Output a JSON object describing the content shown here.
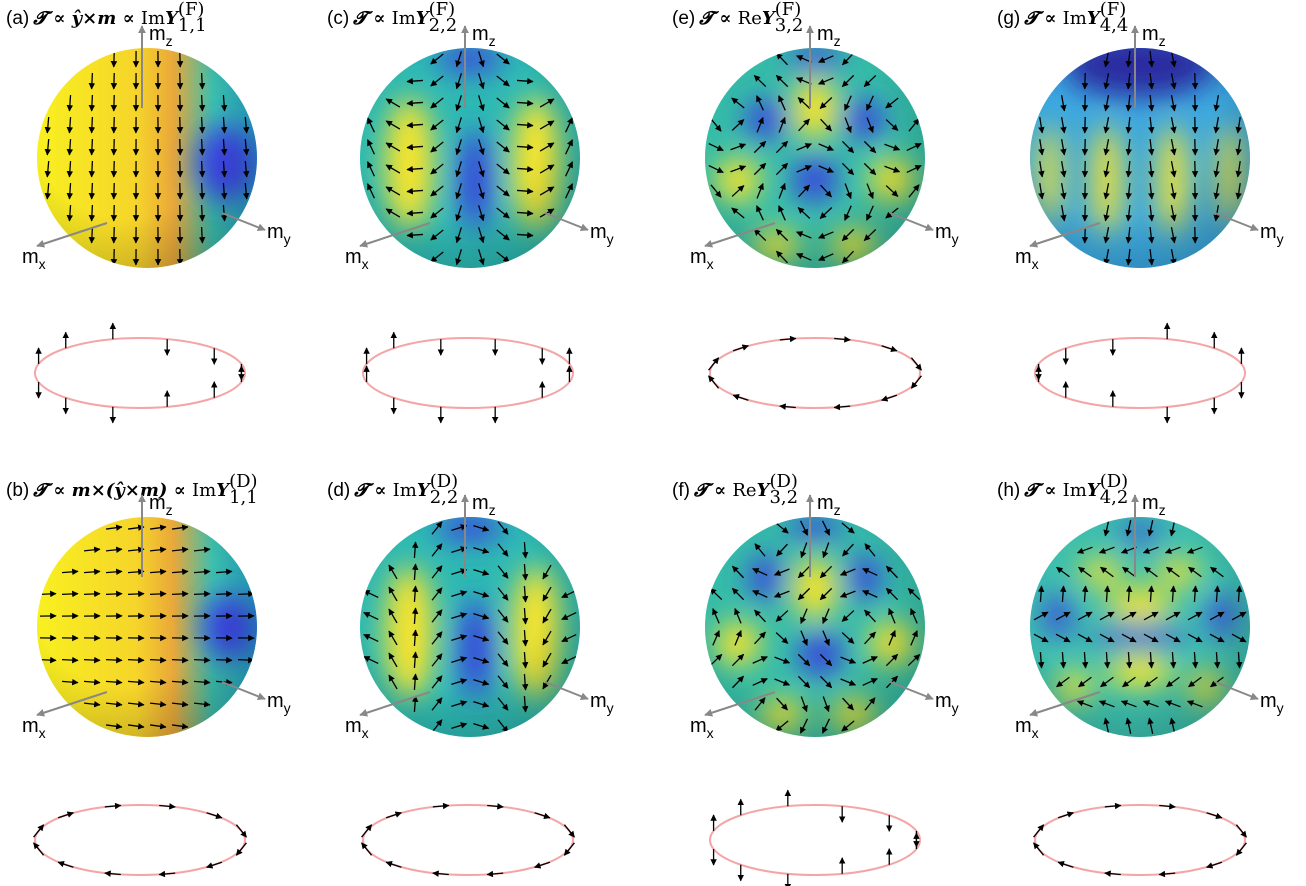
{
  "axis_labels": {
    "z": {
      "base": "m",
      "sub": "z"
    },
    "x": {
      "base": "m",
      "sub": "x"
    },
    "y": {
      "base": "m",
      "sub": "y"
    }
  },
  "panels": [
    {
      "label": "(a)",
      "prefix": "𝓣 ∝ ŷ×m ∝ ",
      "func": "Im",
      "sym": "Y",
      "sup": "(F)",
      "sub": "1,1"
    },
    {
      "label": "(c)",
      "prefix": "𝓣 ∝ ",
      "func": "Im",
      "sym": "Y",
      "sup": "(F)",
      "sub": "2,2"
    },
    {
      "label": "(e)",
      "prefix": "𝓣 ∝ ",
      "func": "Re",
      "sym": "Y",
      "sup": "(F)",
      "sub": "3,2"
    },
    {
      "label": "(g)",
      "prefix": "𝓣 ∝ ",
      "func": "Im",
      "sym": "Y",
      "sup": "(F)",
      "sub": "4,4"
    },
    {
      "label": "(b)",
      "prefix": "𝓣 ∝ m×(ŷ×m) ∝ ",
      "func": "Im",
      "sym": "Y",
      "sup": "(D)",
      "sub": "1,1"
    },
    {
      "label": "(d)",
      "prefix": "𝓣 ∝ ",
      "func": "Im",
      "sym": "Y",
      "sup": "(D)",
      "sub": "2,2"
    },
    {
      "label": "(f)",
      "prefix": "𝓣 ∝ ",
      "func": "Re",
      "sym": "Y",
      "sup": "(D)",
      "sub": "3,2"
    },
    {
      "label": "(h)",
      "prefix": "𝓣 ∝ ",
      "func": "Im",
      "sym": "Y",
      "sup": "(D)",
      "sub": "4,2"
    }
  ]
}
